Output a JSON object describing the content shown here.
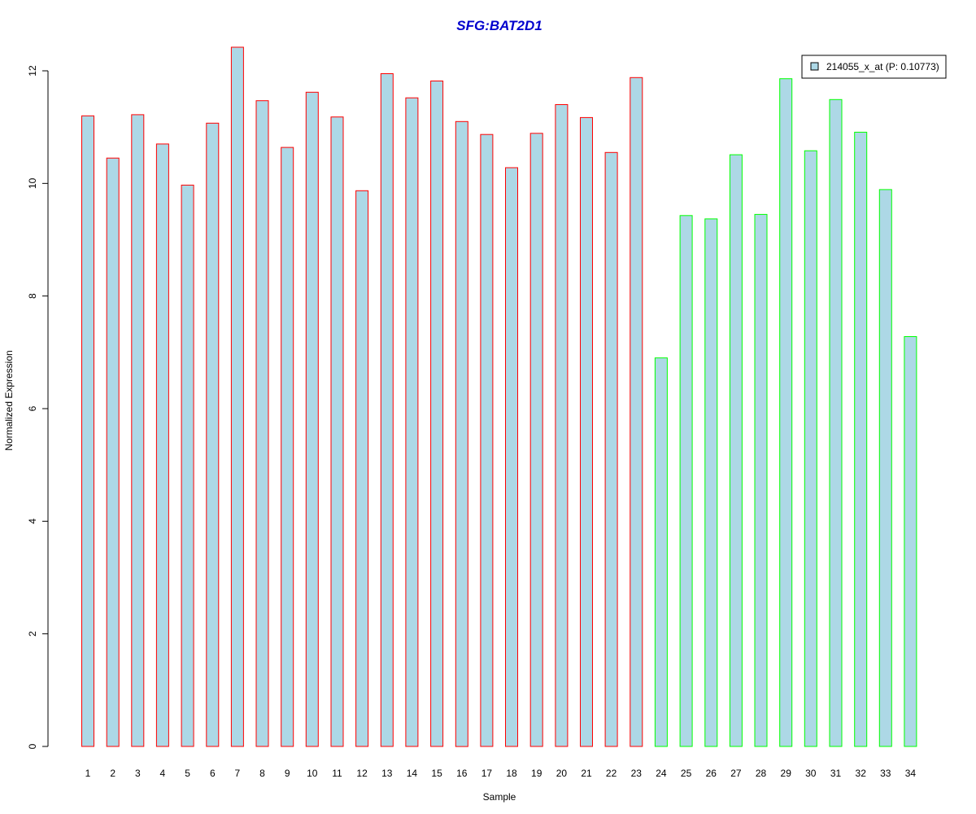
{
  "chart_data": {
    "type": "bar",
    "title": "SFG:BAT2D1",
    "xlabel": "Sample",
    "ylabel": "Normalized Expression",
    "ylim": [
      0,
      12
    ],
    "yticks": [
      "0",
      "2",
      "4",
      "6",
      "8",
      "10",
      "12"
    ],
    "grid": false,
    "legend_position": "top-right",
    "bar_fill": "#add8e6",
    "categories": [
      "1",
      "2",
      "3",
      "4",
      "5",
      "6",
      "7",
      "8",
      "9",
      "10",
      "11",
      "12",
      "13",
      "14",
      "15",
      "16",
      "17",
      "18",
      "19",
      "20",
      "21",
      "22",
      "23",
      "24",
      "25",
      "26",
      "27",
      "28",
      "29",
      "30",
      "31",
      "32",
      "33",
      "34"
    ],
    "series": [
      {
        "name": "214055_x_at (P: 0.10773)",
        "values": [
          11.2,
          10.45,
          11.22,
          10.7,
          9.97,
          11.07,
          12.42,
          11.47,
          10.64,
          11.62,
          11.18,
          9.87,
          11.95,
          11.52,
          11.82,
          11.1,
          10.87,
          10.28,
          10.89,
          11.4,
          11.17,
          10.55,
          11.88,
          6.9,
          9.43,
          9.37,
          10.51,
          9.45,
          11.86,
          10.58,
          11.49,
          10.91,
          9.89,
          7.28
        ],
        "outline_colors": [
          "#ff0000",
          "#ff0000",
          "#ff0000",
          "#ff0000",
          "#ff0000",
          "#ff0000",
          "#ff0000",
          "#ff0000",
          "#ff0000",
          "#ff0000",
          "#ff0000",
          "#ff0000",
          "#ff0000",
          "#ff0000",
          "#ff0000",
          "#ff0000",
          "#ff0000",
          "#ff0000",
          "#ff0000",
          "#ff0000",
          "#ff0000",
          "#ff0000",
          "#ff0000",
          "#00ff00",
          "#00ff00",
          "#00ff00",
          "#00ff00",
          "#00ff00",
          "#00ff00",
          "#00ff00",
          "#00ff00",
          "#00ff00",
          "#00ff00",
          "#00ff00"
        ]
      }
    ]
  }
}
